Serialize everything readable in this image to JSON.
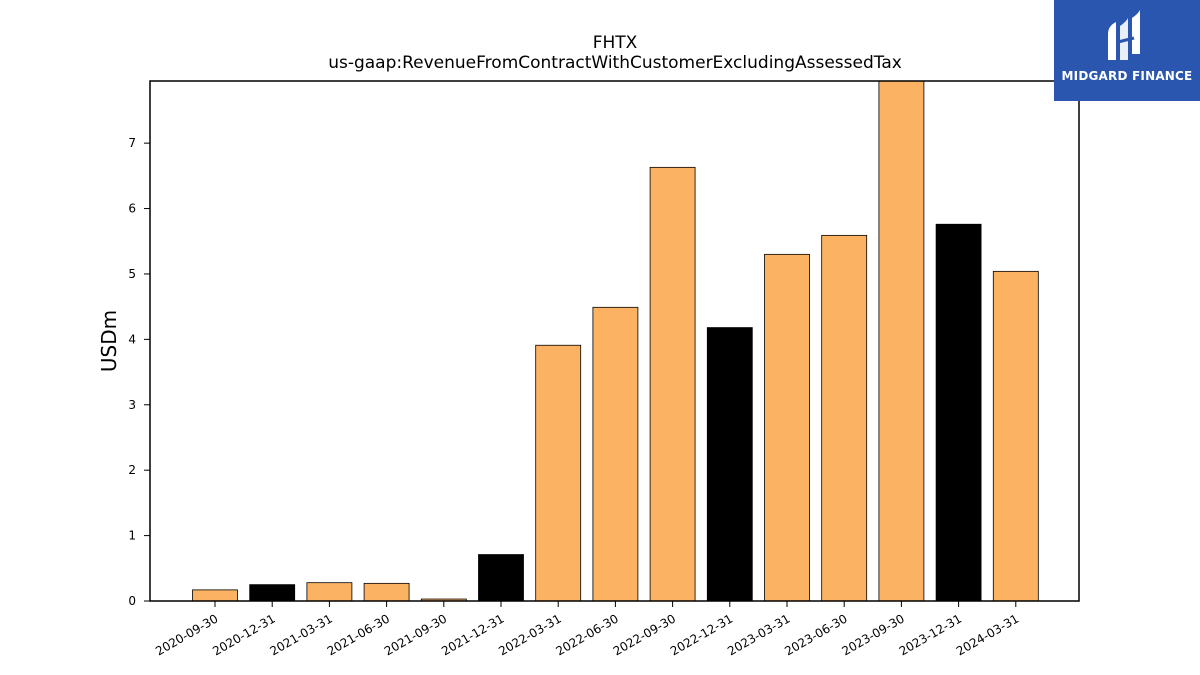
{
  "chart_data": {
    "type": "bar",
    "title": "FHTX",
    "subtitle": "us-gaap:RevenueFromContractWithCustomerExcludingAssessedTax",
    "ylabel": "USDm",
    "xlabel": "",
    "ylim": [
      0,
      7.95
    ],
    "yticks": [
      0,
      1,
      2,
      3,
      4,
      5,
      6,
      7
    ],
    "grid": false,
    "categories": [
      "2020-09-30",
      "2020-12-31",
      "2021-03-31",
      "2021-06-30",
      "2021-09-30",
      "2021-12-31",
      "2022-03-31",
      "2022-06-30",
      "2022-09-30",
      "2022-12-31",
      "2023-03-31",
      "2023-06-30",
      "2023-09-30",
      "2023-12-31",
      "2024-03-31"
    ],
    "values": [
      0.17,
      0.25,
      0.28,
      0.27,
      0.03,
      0.71,
      3.91,
      4.49,
      6.63,
      4.18,
      5.3,
      5.59,
      7.95,
      5.76,
      5.04
    ],
    "bar_colors": [
      "#fbb262",
      "#000000",
      "#fbb262",
      "#fbb262",
      "#fbb262",
      "#000000",
      "#fbb262",
      "#fbb262",
      "#fbb262",
      "#000000",
      "#fbb262",
      "#fbb262",
      "#fbb262",
      "#000000",
      "#fbb262"
    ]
  },
  "logo": {
    "text": "MIDGARD FINANCE",
    "bg": "#2a56b0"
  }
}
